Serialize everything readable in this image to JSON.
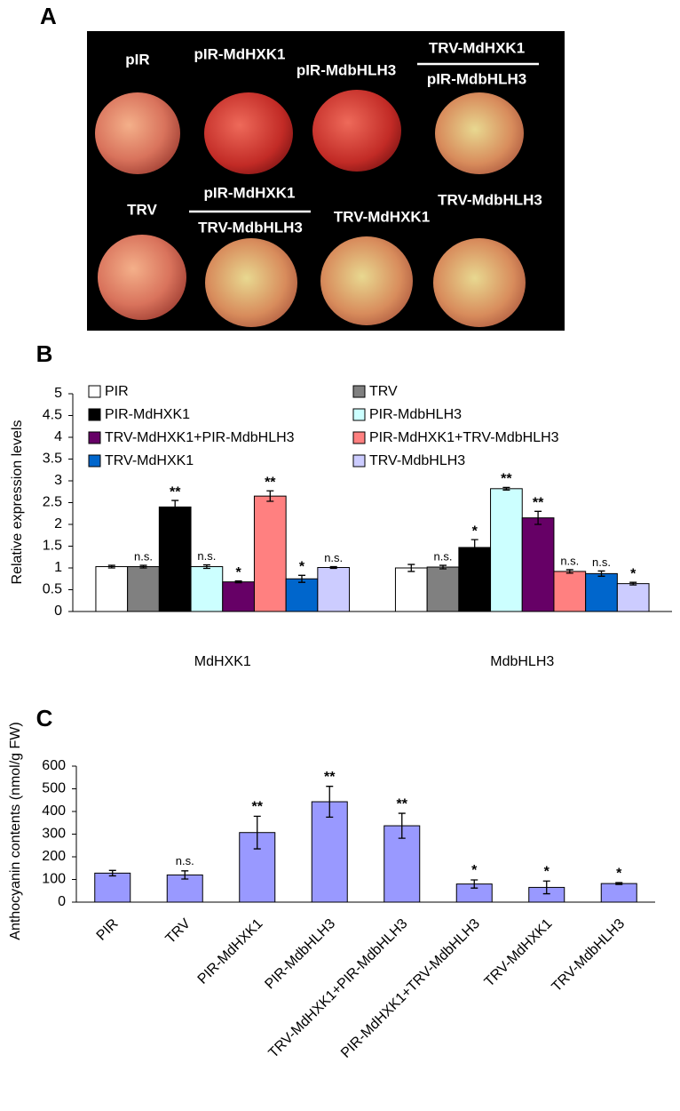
{
  "panel_a": {
    "label": "A",
    "photo_labels": [
      "pIR",
      "pIR-MdHXK1",
      "pIR-MdbHLH3",
      "TRV-MdHXK1",
      "pIR-MdbHLH3",
      "TRV",
      "pIR-MdHXK1",
      "TRV-MdbHLH3",
      "TRV-MdHXK1",
      "TRV-MdbHLH3"
    ]
  },
  "chart_data": [
    {
      "type": "bar",
      "label": "B",
      "ylabel": "Relative expression levels",
      "categories": [
        "MdHXK1",
        "MdbHLH3"
      ],
      "ylim": [
        0,
        5
      ],
      "yticks": [
        0,
        0.5,
        1,
        1.5,
        2,
        2.5,
        3,
        3.5,
        4,
        4.5,
        5
      ],
      "series": [
        {
          "name": "PIR",
          "color": "#ffffff",
          "values": [
            1.03,
            1.0
          ],
          "errors": [
            0.03,
            0.08
          ],
          "annotations": [
            null,
            null
          ]
        },
        {
          "name": "TRV",
          "color": "#808080",
          "values": [
            1.03,
            1.02
          ],
          "errors": [
            0.03,
            0.04
          ],
          "annotations": [
            "n.s.",
            "n.s."
          ]
        },
        {
          "name": "PIR-MdHXK1",
          "color": "#000000",
          "values": [
            2.4,
            1.47
          ],
          "errors": [
            0.15,
            0.18
          ],
          "annotations": [
            "**",
            "*"
          ]
        },
        {
          "name": "PIR-MdbHLH3",
          "color": "#ccffff",
          "values": [
            1.03,
            2.82
          ],
          "errors": [
            0.04,
            0.03
          ],
          "annotations": [
            "n.s.",
            "**"
          ]
        },
        {
          "name": "TRV-MdHXK1+PIR-MdbHLH3",
          "color": "#660066",
          "values": [
            0.68,
            2.15
          ],
          "errors": [
            0.02,
            0.15
          ],
          "annotations": [
            "*",
            "**"
          ]
        },
        {
          "name": "PIR-MdHXK1+TRV-MdbHLH3",
          "color": "#ff8080",
          "values": [
            2.65,
            0.92
          ],
          "errors": [
            0.12,
            0.04
          ],
          "annotations": [
            "**",
            "n.s."
          ]
        },
        {
          "name": "TRV-MdHXK1",
          "color": "#0066cc",
          "values": [
            0.75,
            0.87
          ],
          "errors": [
            0.08,
            0.06
          ],
          "annotations": [
            "*",
            "n.s."
          ]
        },
        {
          "name": "TRV-MdbHLH3",
          "color": "#ccccff",
          "values": [
            1.01,
            0.64
          ],
          "errors": [
            0.02,
            0.03
          ],
          "annotations": [
            "n.s.",
            "*"
          ]
        }
      ]
    },
    {
      "type": "bar",
      "label": "C",
      "ylabel": "Anthocyanin contents (nmol/g FW)",
      "categories": [
        "PIR",
        "TRV",
        "PIR-MdHXK1",
        "PIR-MdbHLH3",
        "TRV-MdHXK1+PIR-MdbHLH3",
        "PIR-MdHXK1+TRV-MdbHLH3",
        "TRV-MdHXK1",
        "TRV-MdbHLH3"
      ],
      "values": [
        128,
        120,
        307,
        443,
        337,
        80,
        65,
        82
      ],
      "errors": [
        12,
        18,
        72,
        68,
        55,
        18,
        28,
        4
      ],
      "annotations": [
        null,
        "n.s.",
        "**",
        "**",
        "**",
        "*",
        "*",
        "*"
      ],
      "color": "#9999ff",
      "ylim": [
        0,
        600
      ],
      "yticks": [
        0,
        100,
        200,
        300,
        400,
        500,
        600
      ]
    }
  ]
}
